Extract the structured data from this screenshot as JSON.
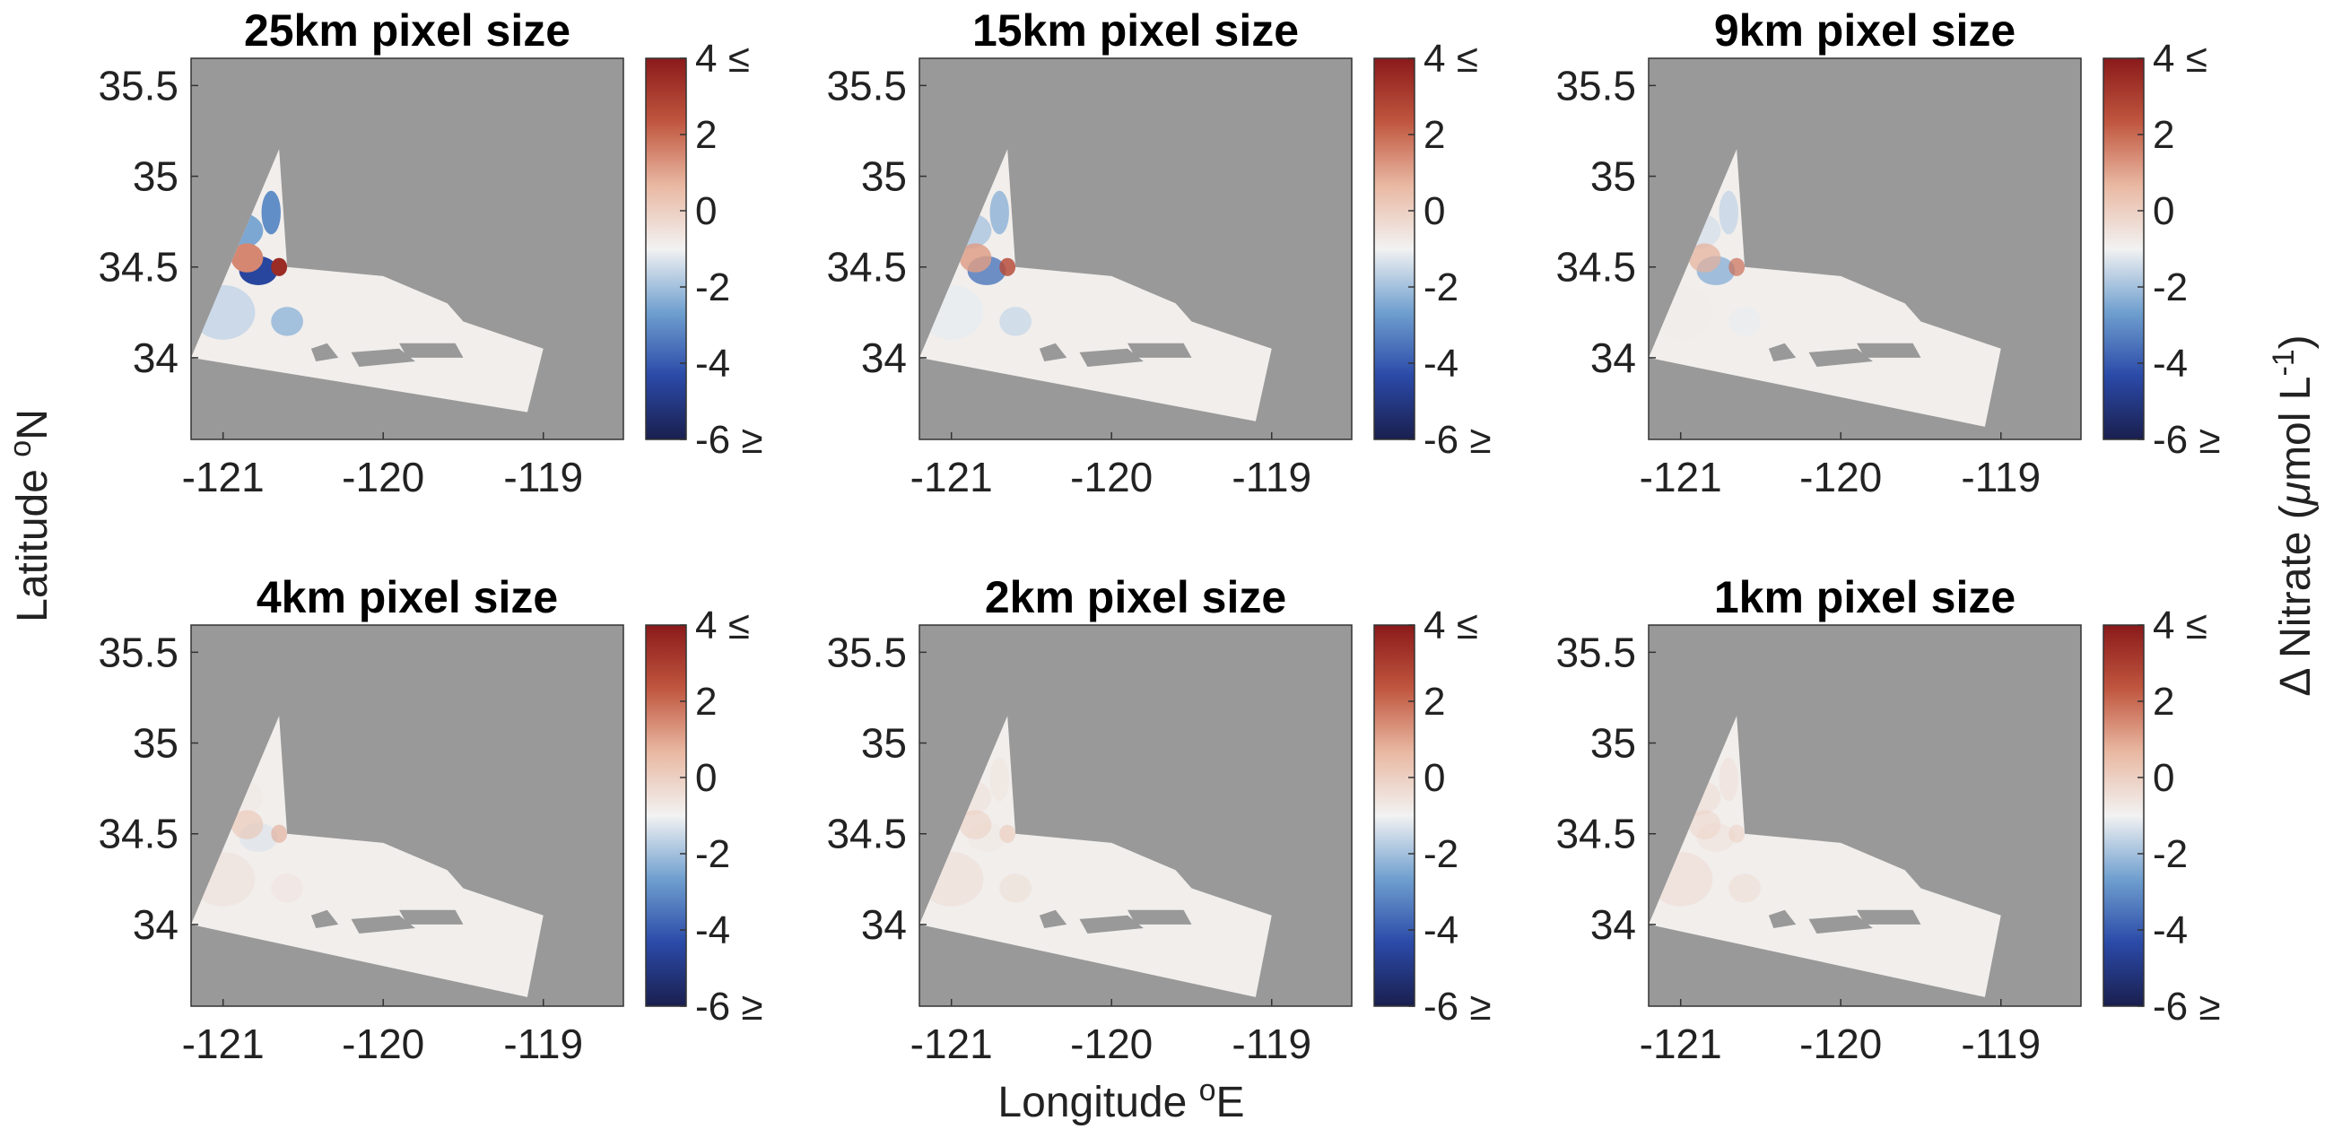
{
  "chart_data": {
    "type": "heatmap",
    "layout": "2x3 grid of maps sharing color scale",
    "xlabel": {
      "main": "Longitude ",
      "sup": "o",
      "tail": "E"
    },
    "ylabel": {
      "main": "Latitude ",
      "sup": "o",
      "tail": "N"
    },
    "colorbar_label": {
      "prefix": "Δ Nitrate (",
      "mu": "μ",
      "unit": "mol L",
      "sup": "-1",
      "suffix": ")"
    },
    "xlim": [
      -121.2,
      -118.5
    ],
    "ylim": [
      33.55,
      35.65
    ],
    "xticks": [
      -121,
      -120,
      -119
    ],
    "xtick_labels": [
      "-121",
      "-120",
      "-119"
    ],
    "yticks": [
      34,
      34.5,
      35,
      35.5
    ],
    "ytick_labels": [
      "34",
      "34.5",
      "35",
      "35.5"
    ],
    "clim": [
      -6,
      4
    ],
    "cbar_ticks": [
      -6,
      -4,
      -2,
      0,
      2,
      4
    ],
    "cbar_tick_labels": [
      "-6 ≥",
      "-4",
      "-2",
      "0",
      "2",
      "4 ≤"
    ],
    "colormap": [
      "#1a1f4e",
      "#2b4aa8",
      "#6f9fcf",
      "#f2f2f2",
      "#e9b8a2",
      "#c0563f",
      "#8a1a1a"
    ],
    "land_color": "#999999",
    "domain_outline_lonlat": [
      [
        -120.65,
        35.15
      ],
      [
        -120.6,
        34.5
      ],
      [
        -120.0,
        34.45
      ],
      [
        -119.6,
        34.3
      ],
      [
        -119.5,
        34.2
      ],
      [
        -119.0,
        34.05
      ],
      [
        -119.1,
        33.7
      ],
      [
        -121.2,
        34.0
      ]
    ],
    "islands_lonlat": [
      [
        [
          -120.45,
          34.05
        ],
        [
          -120.35,
          34.08
        ],
        [
          -120.28,
          34.0
        ],
        [
          -120.42,
          33.98
        ]
      ],
      [
        [
          -120.2,
          34.03
        ],
        [
          -119.9,
          34.05
        ],
        [
          -119.8,
          33.98
        ],
        [
          -120.15,
          33.95
        ]
      ],
      [
        [
          -119.9,
          34.08
        ],
        [
          -119.55,
          34.08
        ],
        [
          -119.5,
          34.0
        ],
        [
          -119.85,
          34.0
        ]
      ]
    ],
    "panels": [
      {
        "title": "25km pixel size",
        "anomaly_scale": 1.0,
        "south_edge_lat": 33.7
      },
      {
        "title": "15km pixel size",
        "anomaly_scale": 0.75,
        "south_edge_lat": 33.65
      },
      {
        "title": "9km pixel size",
        "anomaly_scale": 0.55,
        "south_edge_lat": 33.62
      },
      {
        "title": "4km pixel size",
        "anomaly_scale": 0.3,
        "south_edge_lat": 33.6
      },
      {
        "title": "2km pixel size",
        "anomaly_scale": 0.15,
        "south_edge_lat": 33.6
      },
      {
        "title": "1km pixel size",
        "anomaly_scale": 0.08,
        "south_edge_lat": 33.6
      }
    ]
  }
}
